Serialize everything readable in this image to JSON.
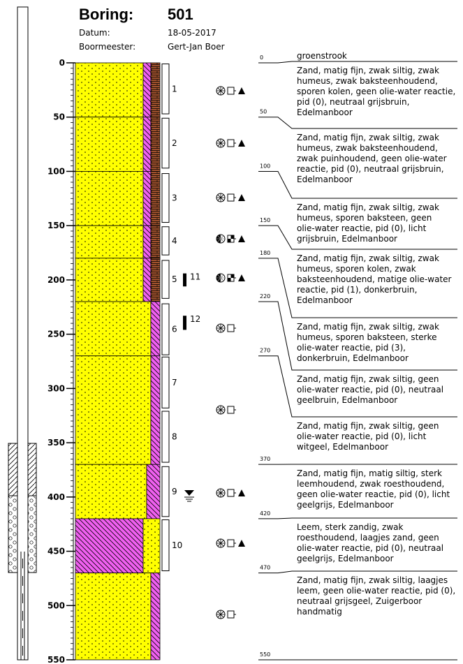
{
  "header": {
    "title_label": "Boring:",
    "title_value": "501",
    "fields": [
      {
        "label": "Datum:",
        "value": "18-05-2017"
      },
      {
        "label": "Boormeester:",
        "value": "Gert-Jan Boer"
      }
    ]
  },
  "depth_axis": {
    "ylim": [
      0,
      550
    ],
    "ticks": [
      0,
      50,
      100,
      150,
      200,
      250,
      300,
      350,
      400,
      450,
      500,
      550
    ]
  },
  "top_label": "groenstrook",
  "layers": [
    {
      "top": 0,
      "bottom": 50,
      "description": [
        "Zand, matig fijn, zwak siltig, zwak",
        "humeus, zwak baksteenhoudend,",
        "sporen kolen, geen olie-water reactie,",
        "pid (0), neutraal grijsbruin,",
        "Edelmanboor"
      ]
    },
    {
      "top": 50,
      "bottom": 100,
      "description": [
        "Zand, matig fijn, zwak siltig, zwak",
        "humeus, zwak baksteenhoudend,",
        "zwak puinhoudend, geen olie-water",
        "reactie, pid (0), neutraal grijsbruin,",
        "Edelmanboor"
      ]
    },
    {
      "top": 100,
      "bottom": 150,
      "description": [
        "Zand, matig fijn, zwak siltig, zwak",
        "humeus, sporen baksteen, geen",
        "olie-water reactie, pid (0), licht",
        "grijsbruin, Edelmanboor"
      ]
    },
    {
      "top": 150,
      "bottom": 180,
      "description": [
        "Zand, matig fijn, zwak siltig, zwak",
        "humeus, sporen kolen, zwak",
        "baksteenhoudend, matige olie-water",
        "reactie, pid (1), donkerbruin,",
        "Edelmanboor"
      ]
    },
    {
      "top": 180,
      "bottom": 220,
      "description": [
        "Zand, matig fijn, zwak siltig, zwak",
        "humeus, sporen baksteen, sterke",
        "olie-water reactie, pid (3),",
        "donkerbruin, Edelmanboor"
      ]
    },
    {
      "top": 220,
      "bottom": 270,
      "description": [
        "Zand, matig fijn, zwak siltig, geen",
        "olie-water reactie, pid (0), neutraal",
        "geelbruin, Edelmanboor"
      ]
    },
    {
      "top": 270,
      "bottom": 370,
      "description": [
        "Zand, matig fijn, zwak siltig, geen",
        "olie-water reactie, pid (0), licht",
        "witgeel, Edelmanboor"
      ]
    },
    {
      "top": 370,
      "bottom": 420,
      "description": [
        "Zand, matig fijn, matig siltig, sterk",
        "leemhoudend, zwak roesthoudend,",
        "geen olie-water reactie, pid (0), licht",
        "geelgrijs, Edelmanboor"
      ]
    },
    {
      "top": 420,
      "bottom": 470,
      "description": [
        "Leem, sterk zandig, zwak",
        "roesthoudend, laagjes zand, geen",
        "olie-water reactie, pid (0), neutraal",
        "geelgrijs, Edelmanboor"
      ]
    },
    {
      "top": 470,
      "bottom": 550,
      "description": [
        "Zand, matig fijn, zwak siltig, laagjes",
        "leem, geen olie-water reactie, pid (0),",
        "neutraal grijsgeel, Zuigerboor",
        "handmatig"
      ]
    }
  ],
  "samples": [
    {
      "number": 1,
      "top": 1,
      "bottom": 47
    },
    {
      "number": 2,
      "top": 51,
      "bottom": 97
    },
    {
      "number": 3,
      "top": 102,
      "bottom": 147
    },
    {
      "number": 4,
      "top": 151,
      "bottom": 177
    },
    {
      "number": 5,
      "top": 182,
      "bottom": 217
    },
    {
      "number": 6,
      "top": 222,
      "bottom": 269
    },
    {
      "number": 7,
      "top": 271,
      "bottom": 318
    },
    {
      "number": 8,
      "top": 321,
      "bottom": 368
    },
    {
      "number": 9,
      "top": 372,
      "bottom": 418
    },
    {
      "number": 10,
      "top": 421,
      "bottom": 468
    }
  ],
  "markers": [
    {
      "number": 11,
      "top": 194,
      "bottom": 206
    },
    {
      "number": 12,
      "top": 233,
      "bottom": 246
    }
  ]
}
